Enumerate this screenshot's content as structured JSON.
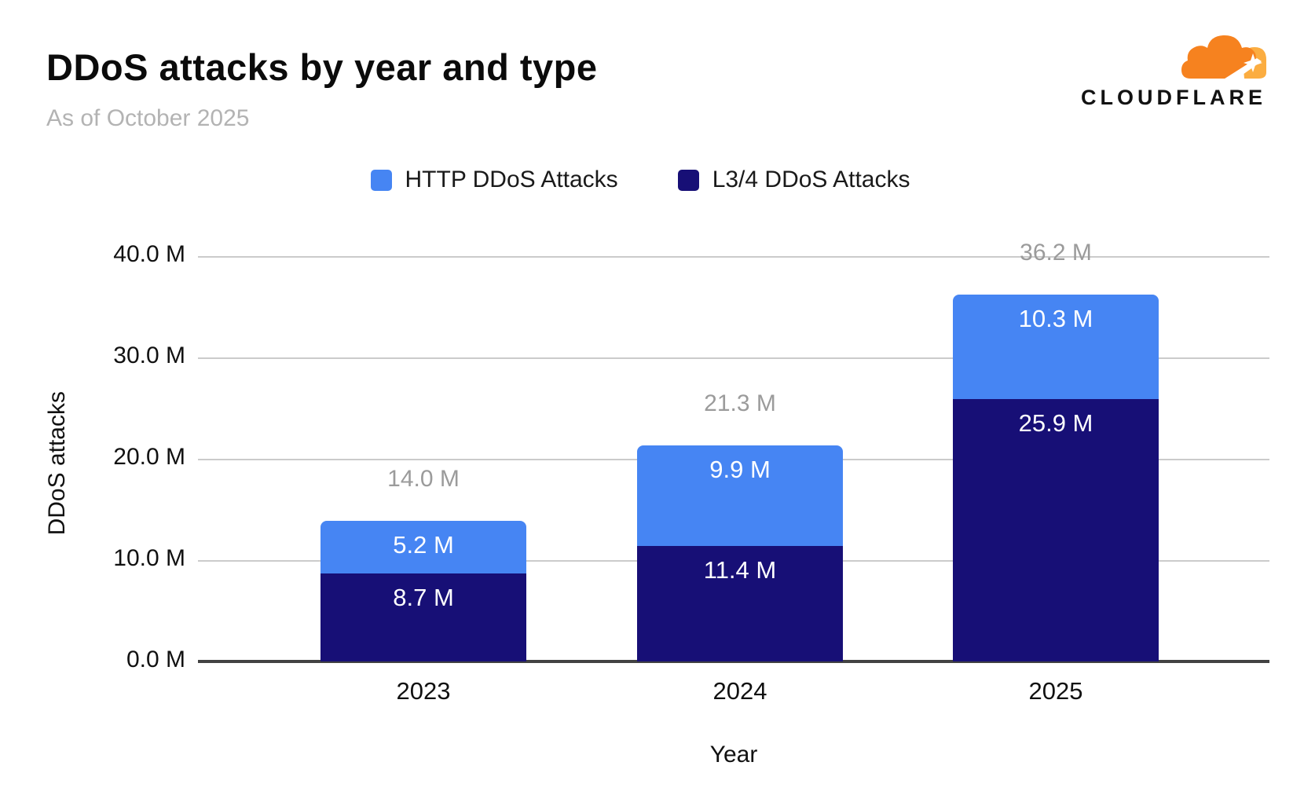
{
  "header": {
    "title": "DDoS attacks by year and type",
    "subtitle": "As of October 2025",
    "logo_text": "CLOUDFLARE"
  },
  "colors": {
    "http_blue": "#4685f3",
    "l34_navy": "#170f76",
    "total_label_gray": "#9b9b9b",
    "subtitle_gray": "#b3b3b3",
    "gridline_gray": "#cbcbcb",
    "axis_line_gray": "#424242",
    "logo_orange": "#f6821f",
    "logo_light_orange": "#fbad41"
  },
  "chart_data": {
    "type": "bar",
    "stacked": true,
    "title": "DDoS attacks by year and type",
    "subtitle": "As of October 2025",
    "categories": [
      "2023",
      "2024",
      "2025"
    ],
    "series": [
      {
        "name": "HTTP DDoS Attacks",
        "color": "#4685f3",
        "values": [
          5.2,
          9.9,
          10.3
        ],
        "labels": [
          "5.2 M",
          "9.9 M",
          "10.3 M"
        ]
      },
      {
        "name": "L3/4 DDoS Attacks",
        "color": "#170f76",
        "values": [
          8.7,
          11.4,
          25.9
        ],
        "labels": [
          "8.7 M",
          "11.4 M",
          "25.9 M"
        ]
      }
    ],
    "totals": [
      "14.0 M",
      "21.3 M",
      "36.2 M"
    ],
    "xlabel": "Year",
    "ylabel": "DDoS attacks",
    "yticks": [
      "0.0 M",
      "10.0 M",
      "20.0 M",
      "30.0 M",
      "40.0 M"
    ],
    "ylim": [
      0,
      40
    ],
    "grid": true,
    "legend_position": "top"
  }
}
